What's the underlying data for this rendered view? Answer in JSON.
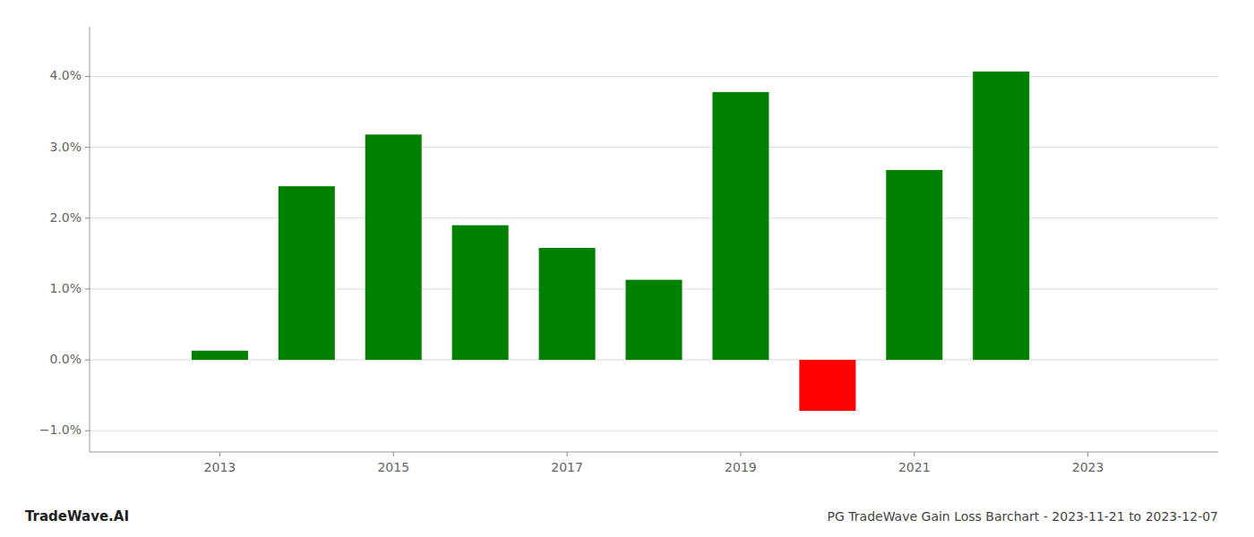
{
  "chart_data": {
    "type": "bar",
    "title": "PG TradeWave Gain Loss Barchart - 2023-11-21 to 2023-12-07",
    "annotations": [
      "TradeWave.AI"
    ],
    "x": [
      2013,
      2014,
      2015,
      2016,
      2017,
      2018,
      2019,
      2020,
      2021,
      2022
    ],
    "values": [
      0.0013,
      0.0245,
      0.0318,
      0.019,
      0.0158,
      0.0113,
      0.0378,
      -0.0072,
      0.0268,
      0.0407
    ],
    "colors": [
      "#008000",
      "#008000",
      "#008000",
      "#008000",
      "#008000",
      "#008000",
      "#008000",
      "#ff0000",
      "#008000",
      "#008000"
    ],
    "xlim": [
      2011.5,
      2024.5
    ],
    "xticks": [
      2013,
      2015,
      2017,
      2019,
      2021,
      2023
    ],
    "ylim": [
      -0.013,
      0.047
    ],
    "yticks": [
      {
        "value": -0.01,
        "label": "−1.0%"
      },
      {
        "value": 0.0,
        "label": "0.0%"
      },
      {
        "value": 0.01,
        "label": "1.0%"
      },
      {
        "value": 0.02,
        "label": "2.0%"
      },
      {
        "value": 0.03,
        "label": "3.0%"
      },
      {
        "value": 0.04,
        "label": "4.0%"
      }
    ],
    "grid": true
  }
}
